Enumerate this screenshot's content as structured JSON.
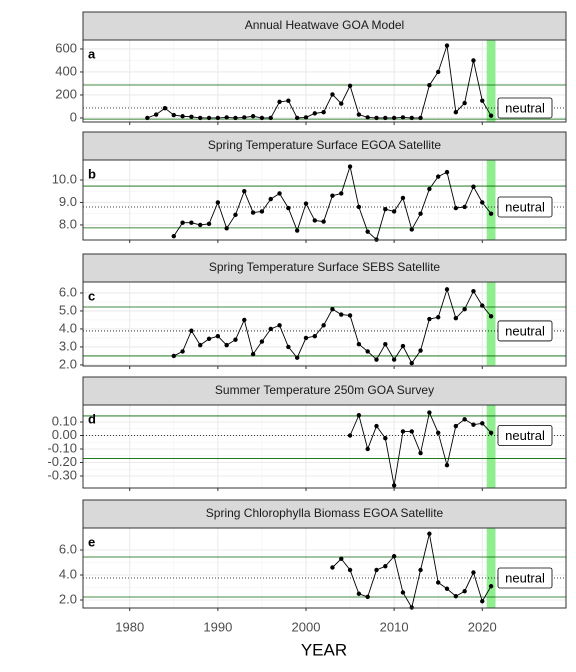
{
  "x_axis": {
    "label": "YEAR",
    "xlim": [
      1974.7,
      2029.5
    ],
    "xticks": [
      1980,
      1990,
      2000,
      2010,
      2020
    ]
  },
  "chart_data": [
    {
      "type": "line",
      "title": "Annual Heatwave GOA Model",
      "panel_label": "a",
      "annotation": "neutral",
      "x": [
        1982,
        1983,
        1984,
        1985,
        1986,
        1987,
        1988,
        1989,
        1990,
        1991,
        1992,
        1993,
        1994,
        1995,
        1996,
        1997,
        1998,
        1999,
        2000,
        2001,
        2002,
        2003,
        2004,
        2005,
        2006,
        2007,
        2008,
        2009,
        2010,
        2011,
        2012,
        2013,
        2014,
        2015,
        2016,
        2017,
        2018,
        2019,
        2020,
        2021
      ],
      "values": [
        0,
        30,
        85,
        25,
        15,
        10,
        0,
        0,
        0,
        5,
        0,
        5,
        15,
        0,
        0,
        140,
        150,
        0,
        5,
        40,
        50,
        205,
        125,
        280,
        30,
        5,
        0,
        0,
        0,
        5,
        0,
        0,
        285,
        400,
        630,
        50,
        130,
        500,
        150,
        20
      ],
      "ylim": [
        -35,
        678
      ],
      "yticks": [
        0,
        200,
        400,
        600
      ],
      "reference_lines": {
        "upper": 287,
        "mean": 87,
        "lower": -10
      },
      "highlight_x": [
        2020.5,
        2021.5
      ],
      "line_color": "#000000",
      "reference_color": "#006400",
      "highlight_color": "#90ee90"
    },
    {
      "type": "line",
      "title": "Spring Temperature Surface EGOA Satellite",
      "panel_label": "b",
      "annotation": "neutral",
      "x": [
        1985,
        1986,
        1987,
        1988,
        1989,
        1990,
        1991,
        1992,
        1993,
        1994,
        1995,
        1996,
        1997,
        1998,
        1999,
        2000,
        2001,
        2002,
        2003,
        2004,
        2005,
        2006,
        2007,
        2008,
        2009,
        2010,
        2011,
        2012,
        2013,
        2014,
        2015,
        2016,
        2017,
        2018,
        2019,
        2020,
        2021
      ],
      "values": [
        7.5,
        8.1,
        8.1,
        8.0,
        8.05,
        9.0,
        7.85,
        8.45,
        9.5,
        8.55,
        8.6,
        9.15,
        9.4,
        8.75,
        7.75,
        8.95,
        8.2,
        8.15,
        9.3,
        9.4,
        10.6,
        8.8,
        7.7,
        7.35,
        8.7,
        8.6,
        9.2,
        7.8,
        8.5,
        9.6,
        10.15,
        10.35,
        8.75,
        8.8,
        9.7,
        9.0,
        8.5
      ],
      "ylim": [
        7.33,
        10.89
      ],
      "yticks": [
        {
          "value": 8,
          "label": "8.0"
        },
        {
          "value": 9,
          "label": "9.0"
        },
        {
          "value": 10,
          "label": "10.0"
        }
      ],
      "reference_lines": {
        "upper": 9.73,
        "mean": 8.8,
        "lower": 7.87
      },
      "highlight_x": [
        2020.5,
        2021.5
      ],
      "line_color": "#000000",
      "reference_color": "#006400",
      "highlight_color": "#90ee90"
    },
    {
      "type": "line",
      "title": "Spring Temperature Surface SEBS Satellite",
      "panel_label": "c",
      "annotation": "neutral",
      "x": [
        1985,
        1986,
        1987,
        1988,
        1989,
        1990,
        1991,
        1992,
        1993,
        1994,
        1995,
        1996,
        1997,
        1998,
        1999,
        2000,
        2001,
        2002,
        2003,
        2004,
        2005,
        2006,
        2007,
        2008,
        2009,
        2010,
        2011,
        2012,
        2013,
        2014,
        2015,
        2016,
        2017,
        2018,
        2019,
        2020,
        2021
      ],
      "values": [
        2.5,
        2.75,
        3.9,
        3.1,
        3.45,
        3.6,
        3.1,
        3.4,
        4.5,
        2.6,
        3.3,
        4.0,
        4.2,
        3.0,
        2.4,
        3.5,
        3.6,
        4.2,
        5.1,
        4.8,
        4.75,
        3.15,
        2.75,
        2.3,
        3.15,
        2.3,
        3.05,
        2.1,
        2.8,
        4.55,
        4.65,
        6.2,
        4.6,
        5.1,
        6.1,
        5.3,
        4.7
      ],
      "ylim": [
        1.94,
        6.61
      ],
      "yticks": [
        {
          "value": 2,
          "label": "2.0"
        },
        {
          "value": 3,
          "label": "3.0"
        },
        {
          "value": 4,
          "label": "4.0"
        },
        {
          "value": 5,
          "label": "5.0"
        },
        {
          "value": 6,
          "label": "6.0"
        }
      ],
      "reference_lines": {
        "upper": 5.22,
        "mean": 3.89,
        "lower": 2.5
      },
      "highlight_x": [
        2020.5,
        2021.5
      ],
      "line_color": "#000000",
      "reference_color": "#006400",
      "highlight_color": "#90ee90"
    },
    {
      "type": "line",
      "title": "Summer Temperature 250m GOA Survey",
      "panel_label": "d",
      "annotation": "neutral",
      "x": [
        2005,
        2006,
        2007,
        2008,
        2009,
        2010,
        2011,
        2012,
        2013,
        2014,
        2015,
        2016,
        2017,
        2018,
        2019,
        2020,
        2021
      ],
      "values": [
        0.0,
        0.15,
        -0.1,
        0.07,
        -0.02,
        -0.37,
        0.03,
        0.03,
        -0.13,
        0.17,
        0.02,
        -0.22,
        0.07,
        0.12,
        0.08,
        0.09,
        0.02
      ],
      "ylim": [
        -0.389,
        0.226
      ],
      "yticks": [
        {
          "value": -0.3,
          "label": "-0.30"
        },
        {
          "value": -0.2,
          "label": "-0.20"
        },
        {
          "value": -0.1,
          "label": "-0.10"
        },
        {
          "value": 0,
          "label": "0.00"
        },
        {
          "value": 0.1,
          "label": "0.10"
        }
      ],
      "reference_lines": {
        "upper": 0.145,
        "mean": 0,
        "lower": -0.17
      },
      "highlight_x": [
        2020.5,
        2021.5
      ],
      "line_color": "#000000",
      "reference_color": "#006400",
      "highlight_color": "#90ee90"
    },
    {
      "type": "line",
      "title": "Spring Chlorophylla Biomass EGOA Satellite",
      "panel_label": "e",
      "annotation": "neutral",
      "x": [
        2003,
        2004,
        2005,
        2006,
        2007,
        2008,
        2009,
        2010,
        2011,
        2012,
        2013,
        2014,
        2015,
        2016,
        2017,
        2018,
        2019,
        2020,
        2021
      ],
      "values": [
        4.6,
        5.3,
        4.4,
        2.5,
        2.25,
        4.4,
        4.7,
        5.5,
        2.6,
        1.4,
        4.4,
        7.3,
        3.4,
        2.9,
        2.3,
        2.7,
        4.2,
        1.9,
        3.1
      ],
      "ylim": [
        1.36,
        7.76
      ],
      "yticks": [
        {
          "value": 2,
          "label": "2.0"
        },
        {
          "value": 4,
          "label": "4.0"
        },
        {
          "value": 6,
          "label": "6.0"
        }
      ],
      "reference_lines": {
        "upper": 5.44,
        "mean": 3.76,
        "lower": 2.24
      },
      "highlight_x": [
        2020.5,
        2021.5
      ],
      "line_color": "#000000",
      "reference_color": "#006400",
      "highlight_color": "#90ee90"
    }
  ]
}
